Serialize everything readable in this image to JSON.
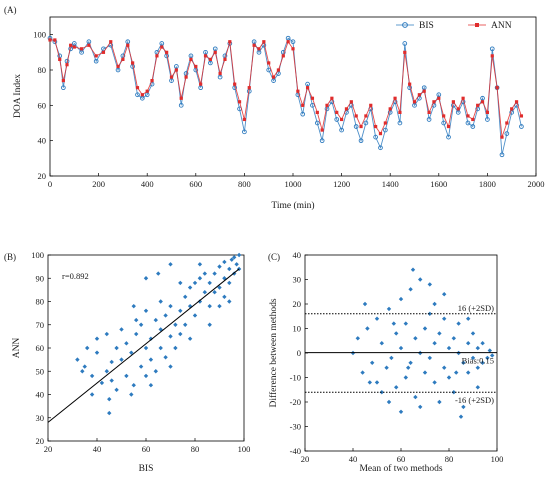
{
  "chart_data": [
    {
      "id": "A",
      "type": "line",
      "panel_label": "(A)",
      "xlabel": "Time (min)",
      "ylabel": "DOA Index",
      "xlim": [
        0,
        2000
      ],
      "ylim": [
        20,
        110
      ],
      "xticks": [
        0,
        200,
        400,
        600,
        800,
        1000,
        1200,
        1400,
        1600,
        1800,
        2000
      ],
      "yticks": [
        20,
        40,
        60,
        80,
        100
      ],
      "legend_position": "top-right",
      "series": [
        {
          "name": "BIS",
          "color": "#2e7bbf",
          "marker": "circle",
          "x": [
            0,
            20,
            40,
            55,
            70,
            85,
            100,
            130,
            160,
            190,
            220,
            250,
            280,
            300,
            320,
            340,
            360,
            380,
            400,
            420,
            440,
            460,
            480,
            500,
            520,
            540,
            560,
            580,
            600,
            620,
            640,
            660,
            680,
            700,
            720,
            740,
            760,
            780,
            800,
            820,
            840,
            860,
            880,
            900,
            920,
            940,
            960,
            980,
            1000,
            1020,
            1040,
            1060,
            1080,
            1100,
            1120,
            1140,
            1160,
            1180,
            1200,
            1220,
            1240,
            1260,
            1280,
            1300,
            1320,
            1340,
            1360,
            1380,
            1400,
            1420,
            1440,
            1460,
            1480,
            1500,
            1520,
            1540,
            1560,
            1580,
            1600,
            1620,
            1640,
            1660,
            1680,
            1700,
            1720,
            1740,
            1760,
            1780,
            1800,
            1820,
            1840,
            1860,
            1880,
            1900,
            1920,
            1940
          ],
          "y": [
            98,
            96,
            88,
            70,
            85,
            92,
            95,
            90,
            96,
            85,
            92,
            94,
            80,
            88,
            96,
            82,
            66,
            64,
            66,
            72,
            90,
            95,
            88,
            74,
            82,
            60,
            78,
            88,
            80,
            70,
            90,
            84,
            92,
            76,
            88,
            95,
            70,
            58,
            45,
            68,
            96,
            90,
            94,
            80,
            74,
            78,
            90,
            98,
            96,
            66,
            55,
            72,
            60,
            50,
            40,
            58,
            62,
            52,
            46,
            56,
            60,
            48,
            40,
            50,
            58,
            42,
            36,
            46,
            56,
            62,
            50,
            95,
            70,
            60,
            64,
            70,
            52,
            60,
            66,
            50,
            42,
            60,
            56,
            62,
            50,
            48,
            58,
            64,
            52,
            92,
            70,
            32,
            44,
            56,
            60,
            48
          ]
        },
        {
          "name": "ANN",
          "color": "#e02c2c",
          "marker": "square",
          "x": [
            0,
            20,
            40,
            55,
            70,
            85,
            100,
            130,
            160,
            190,
            220,
            250,
            280,
            300,
            320,
            340,
            360,
            380,
            400,
            420,
            440,
            460,
            480,
            500,
            520,
            540,
            560,
            580,
            600,
            620,
            640,
            660,
            680,
            700,
            720,
            740,
            760,
            780,
            800,
            820,
            840,
            860,
            880,
            900,
            920,
            940,
            960,
            980,
            1000,
            1020,
            1040,
            1060,
            1080,
            1100,
            1120,
            1140,
            1160,
            1180,
            1200,
            1220,
            1240,
            1260,
            1280,
            1300,
            1320,
            1340,
            1360,
            1380,
            1400,
            1420,
            1440,
            1460,
            1480,
            1500,
            1520,
            1540,
            1560,
            1580,
            1600,
            1620,
            1640,
            1660,
            1680,
            1700,
            1720,
            1740,
            1760,
            1780,
            1800,
            1820,
            1840,
            1860,
            1880,
            1900,
            1920,
            1940
          ],
          "y": [
            97,
            97,
            86,
            74,
            83,
            94,
            93,
            92,
            94,
            88,
            90,
            96,
            82,
            86,
            94,
            84,
            70,
            66,
            68,
            74,
            88,
            93,
            90,
            76,
            80,
            64,
            76,
            86,
            82,
            72,
            88,
            86,
            90,
            78,
            86,
            96,
            72,
            62,
            52,
            70,
            94,
            92,
            96,
            84,
            76,
            80,
            88,
            96,
            92,
            68,
            60,
            70,
            64,
            56,
            46,
            60,
            64,
            56,
            52,
            58,
            62,
            54,
            48,
            54,
            60,
            48,
            44,
            50,
            58,
            64,
            56,
            90,
            72,
            62,
            66,
            68,
            56,
            62,
            64,
            54,
            48,
            62,
            58,
            64,
            54,
            52,
            60,
            62,
            56,
            88,
            70,
            42,
            50,
            58,
            62,
            54
          ]
        }
      ]
    },
    {
      "id": "B",
      "type": "scatter",
      "panel_label": "(B)",
      "xlabel": "BIS",
      "ylabel": "ANN",
      "xlim": [
        20,
        100
      ],
      "ylim": [
        20,
        100
      ],
      "xticks": [
        20,
        40,
        60,
        80,
        100
      ],
      "yticks": [
        20,
        30,
        40,
        50,
        60,
        70,
        80,
        90,
        100
      ],
      "annotation": "r=0.892",
      "color": "#2e7bbf",
      "fit_line": {
        "x": [
          20,
          98
        ],
        "y": [
          28,
          94
        ]
      },
      "points": [
        [
          32,
          55
        ],
        [
          35,
          52
        ],
        [
          38,
          48
        ],
        [
          40,
          58
        ],
        [
          42,
          45
        ],
        [
          44,
          50
        ],
        [
          45,
          38
        ],
        [
          46,
          54
        ],
        [
          48,
          60
        ],
        [
          48,
          42
        ],
        [
          50,
          55
        ],
        [
          52,
          48
        ],
        [
          52,
          62
        ],
        [
          54,
          58
        ],
        [
          55,
          44
        ],
        [
          56,
          66
        ],
        [
          58,
          52
        ],
        [
          58,
          70
        ],
        [
          60,
          60
        ],
        [
          60,
          48
        ],
        [
          62,
          64
        ],
        [
          62,
          55
        ],
        [
          64,
          72
        ],
        [
          64,
          50
        ],
        [
          66,
          60
        ],
        [
          66,
          68
        ],
        [
          68,
          74
        ],
        [
          68,
          56
        ],
        [
          70,
          65
        ],
        [
          70,
          78
        ],
        [
          72,
          70
        ],
        [
          72,
          60
        ],
        [
          74,
          76
        ],
        [
          74,
          66
        ],
        [
          76,
          82
        ],
        [
          76,
          70
        ],
        [
          78,
          78
        ],
        [
          78,
          86
        ],
        [
          80,
          74
        ],
        [
          80,
          88
        ],
        [
          82,
          80
        ],
        [
          82,
          90
        ],
        [
          84,
          84
        ],
        [
          84,
          92
        ],
        [
          86,
          88
        ],
        [
          86,
          78
        ],
        [
          88,
          92
        ],
        [
          88,
          84
        ],
        [
          90,
          95
        ],
        [
          90,
          86
        ],
        [
          92,
          90
        ],
        [
          92,
          97
        ],
        [
          94,
          94
        ],
        [
          94,
          88
        ],
        [
          95,
          98
        ],
        [
          96,
          92
        ],
        [
          96,
          99
        ],
        [
          97,
          96
        ],
        [
          98,
          94
        ],
        [
          36,
          60
        ],
        [
          40,
          64
        ],
        [
          44,
          66
        ],
        [
          46,
          46
        ],
        [
          50,
          68
        ],
        [
          54,
          40
        ],
        [
          56,
          72
        ],
        [
          60,
          76
        ],
        [
          62,
          44
        ],
        [
          66,
          80
        ],
        [
          70,
          52
        ],
        [
          74,
          88
        ],
        [
          78,
          64
        ],
        [
          82,
          96
        ],
        [
          86,
          70
        ],
        [
          90,
          78
        ],
        [
          60,
          90
        ],
        [
          65,
          92
        ],
        [
          70,
          96
        ],
        [
          55,
          78
        ],
        [
          45,
          32
        ],
        [
          38,
          40
        ],
        [
          34,
          50
        ],
        [
          94,
          80
        ],
        [
          98,
          100
        ],
        [
          92,
          82
        ]
      ]
    },
    {
      "id": "C",
      "type": "scatter",
      "panel_label": "(C)",
      "xlabel": "Mean of two methods",
      "ylabel": "Difference between methods",
      "xlim": [
        20,
        100
      ],
      "ylim": [
        -40,
        40
      ],
      "xticks": [
        20,
        40,
        60,
        80,
        100
      ],
      "yticks": [
        -40,
        -30,
        -20,
        -10,
        0,
        10,
        20,
        30,
        40
      ],
      "color": "#2e7bbf",
      "bias": 0.15,
      "upper_loa": 16,
      "lower_loa": -16,
      "labels": {
        "upper": "16 (+2SD)",
        "bias": "Bias:0.15",
        "lower": "-16 (+2SD)"
      },
      "points": [
        [
          40,
          0
        ],
        [
          42,
          6
        ],
        [
          44,
          -8
        ],
        [
          46,
          10
        ],
        [
          48,
          -4
        ],
        [
          50,
          14
        ],
        [
          50,
          -12
        ],
        [
          52,
          4
        ],
        [
          54,
          -6
        ],
        [
          55,
          18
        ],
        [
          56,
          -2
        ],
        [
          58,
          8
        ],
        [
          58,
          -14
        ],
        [
          60,
          2
        ],
        [
          60,
          22
        ],
        [
          62,
          -10
        ],
        [
          62,
          12
        ],
        [
          64,
          -4
        ],
        [
          64,
          26
        ],
        [
          66,
          6
        ],
        [
          66,
          -18
        ],
        [
          68,
          0
        ],
        [
          68,
          30
        ],
        [
          70,
          10
        ],
        [
          70,
          -8
        ],
        [
          72,
          -2
        ],
        [
          72,
          16
        ],
        [
          74,
          4
        ],
        [
          74,
          -12
        ],
        [
          76,
          8
        ],
        [
          76,
          -20
        ],
        [
          78,
          -6
        ],
        [
          78,
          14
        ],
        [
          80,
          2
        ],
        [
          80,
          -10
        ],
        [
          82,
          6
        ],
        [
          82,
          -16
        ],
        [
          84,
          0
        ],
        [
          84,
          12
        ],
        [
          86,
          -4
        ],
        [
          86,
          -22
        ],
        [
          88,
          4
        ],
        [
          88,
          -8
        ],
        [
          90,
          -2
        ],
        [
          90,
          8
        ],
        [
          92,
          -6
        ],
        [
          92,
          2
        ],
        [
          94,
          -4
        ],
        [
          94,
          4
        ],
        [
          96,
          -2
        ],
        [
          97,
          1
        ],
        [
          98,
          -1
        ],
        [
          45,
          20
        ],
        [
          55,
          -20
        ],
        [
          65,
          34
        ],
        [
          72,
          28
        ],
        [
          60,
          -24
        ],
        [
          85,
          -26
        ],
        [
          78,
          24
        ],
        [
          52,
          -16
        ],
        [
          68,
          -22
        ],
        [
          88,
          14
        ],
        [
          92,
          -14
        ],
        [
          74,
          20
        ],
        [
          57,
          12
        ],
        [
          63,
          -6
        ],
        [
          83,
          -8
        ],
        [
          47,
          -12
        ]
      ]
    }
  ]
}
